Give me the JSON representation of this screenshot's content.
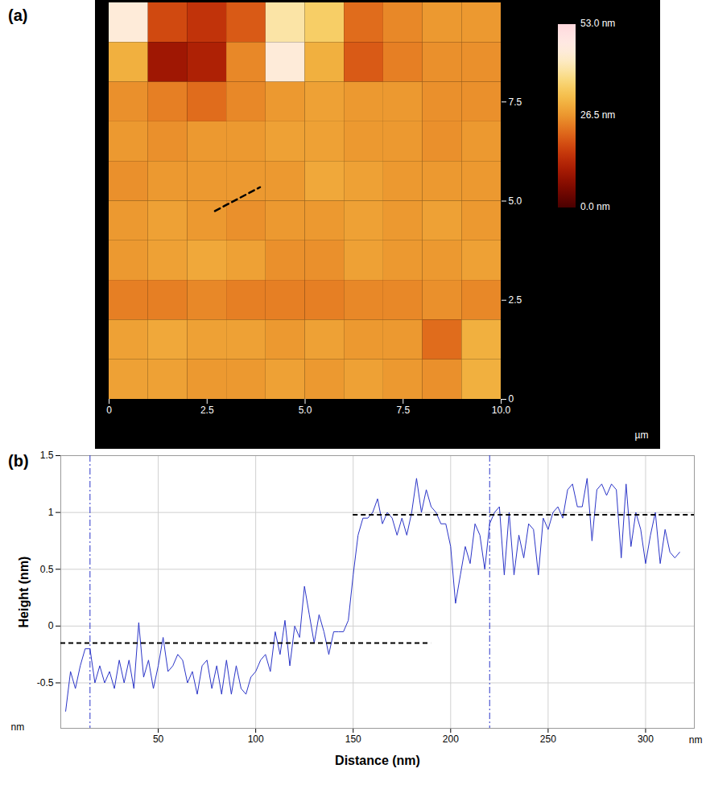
{
  "chart_data": [
    {
      "type": "heatmap",
      "panel_label": "(a)",
      "x_unit": "µm",
      "xlim": [
        0,
        10
      ],
      "ylim": [
        0,
        10
      ],
      "xticks": [
        0,
        2.5,
        {
          "value": 5,
          "label": "5.0"
        },
        7.5,
        {
          "value": 10,
          "label": "10.0"
        }
      ],
      "yticks": [
        0,
        2.5,
        {
          "value": 5,
          "label": "5.0"
        },
        7.5
      ],
      "cell_x": [
        0.5,
        1.5,
        2.5,
        3.5,
        4.5,
        5.5,
        6.5,
        7.5,
        8.5,
        9.5
      ],
      "cell_y": [
        9.5,
        8.5,
        7.5,
        6.5,
        5.5,
        4.5,
        3.5,
        2.5,
        1.5,
        0.5
      ],
      "cells": [
        [
          45,
          18,
          15,
          20,
          40,
          35,
          22,
          25,
          27,
          27
        ],
        [
          30,
          10,
          12,
          25,
          45,
          30,
          20,
          24,
          26,
          26
        ],
        [
          26,
          24,
          22,
          25,
          27,
          28,
          27,
          27,
          26,
          26
        ],
        [
          27,
          26,
          27,
          27,
          28,
          28,
          27,
          27,
          26,
          27
        ],
        [
          26,
          27,
          27,
          27,
          27,
          29,
          28,
          27,
          27,
          27
        ],
        [
          27,
          28,
          27,
          26,
          27,
          27,
          28,
          27,
          28,
          27
        ],
        [
          27,
          28,
          29,
          28,
          26,
          26,
          28,
          27,
          27,
          28
        ],
        [
          24,
          24,
          25,
          24,
          24,
          24,
          25,
          25,
          26,
          25
        ],
        [
          28,
          29,
          28,
          28,
          27,
          28,
          27,
          27,
          22,
          30
        ],
        [
          28,
          28,
          27,
          27,
          28,
          27,
          28,
          27,
          26,
          30
        ]
      ],
      "colorbar": {
        "range": [
          0,
          53
        ],
        "ticks": [
          {
            "value": 0,
            "label": "0.0 nm"
          },
          {
            "value": 26.5,
            "label": "26.5 nm"
          },
          {
            "value": 53,
            "label": "53.0 nm"
          }
        ]
      },
      "profile_line": {
        "x": [
          2.7,
          3.85
        ],
        "y": [
          4.75,
          5.35
        ]
      },
      "line_style": "dashed"
    },
    {
      "type": "line",
      "panel_label": "(b)",
      "x_label": "Distance (nm)",
      "y_label": "Height (nm)",
      "x_unit": "nm",
      "y_unit": "nm",
      "xlim": [
        0,
        325
      ],
      "ylim": [
        -0.9,
        1.5
      ],
      "xticks": [
        50,
        100,
        150,
        200,
        250,
        300
      ],
      "yticks": [
        -0.5,
        0,
        0.5,
        1,
        1.5
      ],
      "grid": true,
      "x": [
        2.5,
        5,
        7.5,
        10,
        12.5,
        15,
        17.5,
        20,
        22.5,
        25,
        27.5,
        30,
        32.5,
        35,
        37.5,
        40,
        42.5,
        45,
        47.5,
        50,
        52.5,
        55,
        57.5,
        60,
        62.5,
        65,
        67.5,
        70,
        72.5,
        75,
        77.5,
        80,
        82.5,
        85,
        87.5,
        90,
        92.5,
        95,
        97.5,
        100,
        102.5,
        105,
        107.5,
        110,
        112.5,
        115,
        117.5,
        120,
        122.5,
        125,
        127.5,
        130,
        132.5,
        135,
        137.5,
        140,
        142.5,
        145,
        147.5,
        150,
        152.5,
        155,
        157.5,
        160,
        162.5,
        165,
        167.5,
        170,
        172.5,
        175,
        177.5,
        180,
        182.5,
        185,
        187.5,
        190,
        192.5,
        195,
        197.5,
        200,
        202.5,
        205,
        207.5,
        210,
        212.5,
        215,
        217.5,
        220,
        222.5,
        225,
        227.5,
        230,
        232.5,
        235,
        237.5,
        240,
        242.5,
        245,
        247.5,
        250,
        252.5,
        255,
        257.5,
        260,
        262.5,
        265,
        267.5,
        270,
        272.5,
        275,
        277.5,
        280,
        282.5,
        285,
        287.5,
        290,
        292.5,
        295,
        297.5,
        300,
        302.5,
        305,
        307.5,
        310,
        312.5,
        315,
        317.5
      ],
      "series": [
        {
          "color": "#2b35c8",
          "line_style": "solid",
          "values": [
            -0.75,
            -0.4,
            -0.55,
            -0.35,
            -0.2,
            -0.2,
            -0.5,
            -0.35,
            -0.5,
            -0.4,
            -0.55,
            -0.3,
            -0.5,
            -0.3,
            -0.55,
            0.03,
            -0.45,
            -0.3,
            -0.55,
            -0.35,
            -0.1,
            -0.4,
            -0.35,
            -0.25,
            -0.3,
            -0.5,
            -0.4,
            -0.6,
            -0.35,
            -0.3,
            -0.55,
            -0.35,
            -0.6,
            -0.3,
            -0.6,
            -0.35,
            -0.55,
            -0.6,
            -0.45,
            -0.4,
            -0.3,
            -0.25,
            -0.4,
            -0.05,
            -0.25,
            0.05,
            -0.35,
            0,
            -0.1,
            0.35,
            0.1,
            -0.15,
            0.1,
            -0.05,
            -0.25,
            -0.05,
            -0.05,
            -0.05,
            0.05,
            0.45,
            0.8,
            0.95,
            0.95,
            1,
            1.12,
            0.9,
            1,
            0.95,
            0.8,
            0.95,
            0.8,
            1,
            1.3,
            1,
            1.2,
            1.05,
            1,
            0.9,
            0.9,
            0.7,
            0.2,
            0.45,
            0.7,
            0.55,
            0.9,
            0.8,
            0.5,
            0.9,
            1,
            1.05,
            0.45,
            1,
            0.45,
            0.8,
            0.6,
            0.9,
            0.85,
            0.45,
            0.95,
            0.85,
            1,
            1.05,
            0.95,
            1.2,
            1.25,
            1.05,
            1.05,
            1.3,
            0.75,
            1.2,
            1.25,
            1.15,
            1.25,
            1.2,
            0.6,
            1.25,
            0.7,
            1,
            0.85,
            0.55,
            0.8,
            1,
            0.55,
            0.85,
            0.65,
            0.6,
            0.65
          ]
        }
      ],
      "cursors": [
        15,
        220
      ],
      "levels": [
        {
          "y": -0.15,
          "x": [
            0,
            190
          ]
        },
        {
          "y": 0.98,
          "x": [
            150,
            325
          ]
        }
      ]
    }
  ]
}
